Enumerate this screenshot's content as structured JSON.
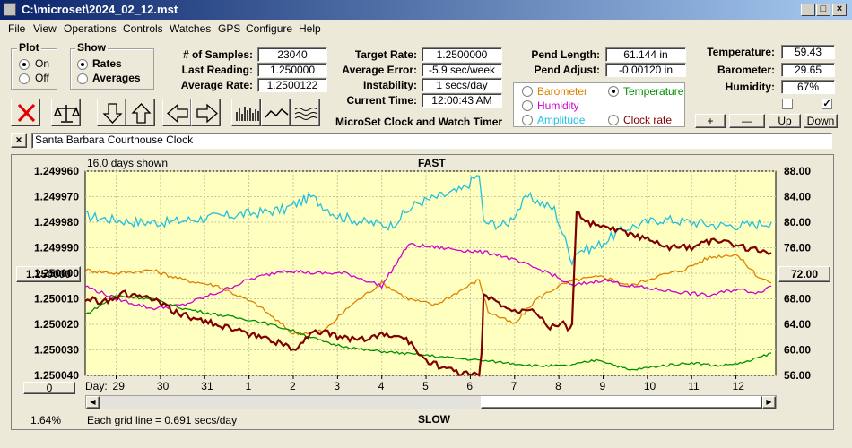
{
  "window": {
    "title": "C:\\microset\\2024_02_12.mst"
  },
  "menu": [
    "File",
    "View",
    "Operations",
    "Controls",
    "Watches",
    "GPS",
    "Configure",
    "Help"
  ],
  "plot": {
    "title": "Plot",
    "on": "On",
    "off": "Off",
    "selected": "On"
  },
  "show": {
    "title": "Show",
    "rates": "Rates",
    "averages": "Averages",
    "selected": "Rates"
  },
  "stats": {
    "samples_label": "# of Samples:",
    "samples": "23040",
    "last_label": "Last Reading:",
    "last": "1.250000",
    "avg_label": "Average Rate:",
    "avg": "1.2500122",
    "target_label": "Target Rate:",
    "target": "1.2500000",
    "err_label": "Average Error:",
    "err": "-5.9 sec/week",
    "inst_label": "Instability:",
    "inst": "1 secs/day",
    "time_label": "Current Time:",
    "time": "12:00:43 AM",
    "pendlen_label": "Pend Length:",
    "pendlen": "61.144 in",
    "pendadj_label": "Pend Adjust:",
    "pendadj": "-0.00120 in",
    "temp_label": "Temperature:",
    "temp": "59.43",
    "baro_label": "Barometer:",
    "baro": "29.65",
    "hum_label": "Humidity:",
    "hum": "67%"
  },
  "app_name": "MicroSet Clock and Watch Timer",
  "sensors": {
    "barometer": "Barometer",
    "temperature": "Temperature",
    "humidity": "Humidity",
    "amplitude": "Amplitude",
    "clockrate": "Clock rate",
    "selected": "Temperature",
    "colors": {
      "barometer": "#e08000",
      "temperature": "#009000",
      "humidity": "#d000d0",
      "amplitude": "#20c0e0",
      "clockrate": "#800000"
    }
  },
  "steppers": {
    "plus": "+",
    "minus": "—",
    "up": "Up",
    "down": "Down"
  },
  "checkboxes": {
    "left": false,
    "right": true
  },
  "clock_name": "Santa Barbara Courthouse Clock",
  "chart_data": {
    "type": "line",
    "top_label": "FAST",
    "bottom_label": "SLOW",
    "days_shown": "16.0 days shown",
    "grid_note": "Each grid line = 0.691 secs/day",
    "zoom": "1.64%",
    "left_button": "1.250000",
    "right_button": "72.00",
    "offset_button": "0",
    "day_label": "Day:",
    "x_ticks": [
      "29",
      "30",
      "31",
      "1",
      "2",
      "3",
      "4",
      "5",
      "6",
      "7",
      "8",
      "9",
      "10",
      "11",
      "12"
    ],
    "y_left_ticks": [
      "1.249960",
      "1.249970",
      "1.249980",
      "1.249990",
      "1.250000",
      "1.250010",
      "1.250020",
      "1.250030",
      "1.250040"
    ],
    "y_right_ticks": [
      "88.00",
      "84.00",
      "80.00",
      "76.00",
      "72.00",
      "68.00",
      "64.00",
      "60.00",
      "56.00"
    ],
    "ylim_left": [
      1.24996,
      1.25004
    ],
    "ylim_right": [
      56,
      88
    ],
    "xlim": [
      28.3,
      12.9
    ],
    "series": [
      {
        "key": "amplitude",
        "x": [
          28.3,
          28.8,
          29.5,
          30.2,
          30.8,
          31.5,
          1.2,
          1.8,
          2.4,
          3.0,
          3.6,
          4.2,
          4.8,
          5.3,
          5.8,
          6.2,
          6.3,
          6.8,
          7.3,
          7.9,
          8.2,
          8.3,
          8.4,
          8.8,
          9.5,
          10.3,
          11.0,
          11.6,
          12.2,
          12.8
        ],
        "y": [
          81.0,
          80.5,
          80.0,
          80.0,
          80.5,
          81.0,
          81.5,
          82.0,
          84.0,
          81.0,
          80.0,
          79.5,
          83.0,
          84.0,
          85.0,
          87.5,
          80.0,
          79.5,
          84.0,
          82.0,
          76.0,
          74.0,
          75.5,
          76.0,
          79.0,
          80.5,
          80.0,
          79.5,
          79.5,
          80.0
        ]
      },
      {
        "key": "barometer",
        "x": [
          28.3,
          29.0,
          29.8,
          30.5,
          31.3,
          1.2,
          2.0,
          2.7,
          3.3,
          4.0,
          4.6,
          5.2,
          5.7,
          6.2,
          6.4,
          7.0,
          7.5,
          8.0,
          8.4,
          9.0,
          9.6,
          10.2,
          10.8,
          11.4,
          12.0,
          12.5,
          12.8
        ],
        "y": [
          72.5,
          72.0,
          72.5,
          71.0,
          70.0,
          67.0,
          62.5,
          63.0,
          67.0,
          70.5,
          68.0,
          67.0,
          69.0,
          71.0,
          66.0,
          64.0,
          68.0,
          70.0,
          71.0,
          71.5,
          70.0,
          71.5,
          72.5,
          74.5,
          75.0,
          71.5,
          70.5
        ]
      },
      {
        "key": "humidity",
        "x": [
          28.3,
          29.0,
          29.8,
          30.5,
          31.3,
          1.0,
          1.8,
          2.5,
          3.2,
          4.0,
          4.6,
          5.3,
          6.0,
          6.6,
          7.2,
          7.8,
          8.3,
          9.0,
          9.6,
          10.2,
          10.8,
          11.4,
          12.0,
          12.5,
          12.8
        ],
        "y": [
          70.0,
          68.0,
          66.5,
          67.0,
          69.0,
          71.0,
          72.5,
          72.0,
          72.0,
          70.0,
          76.5,
          76.0,
          75.5,
          75.0,
          73.5,
          72.0,
          70.0,
          71.0,
          70.0,
          69.5,
          69.0,
          68.5,
          69.5,
          69.0,
          70.0
        ]
      },
      {
        "key": "temperature",
        "x": [
          28.3,
          29.0,
          29.8,
          30.5,
          31.3,
          1.2,
          2.0,
          2.8,
          3.6,
          4.4,
          5.2,
          6.0,
          6.8,
          7.5,
          8.2,
          8.9,
          9.6,
          10.3,
          11.0,
          11.6,
          12.2,
          12.8
        ],
        "y": [
          65.5,
          68.5,
          68.0,
          66.5,
          65.5,
          64.5,
          63.0,
          61.0,
          60.0,
          59.5,
          59.0,
          58.5,
          58.0,
          57.5,
          57.5,
          58.5,
          56.8,
          57.5,
          58.0,
          57.5,
          58.0,
          59.5
        ]
      },
      {
        "key": "clockrate",
        "x": [
          28.3,
          28.7,
          29.2,
          29.8,
          30.3,
          30.8,
          31.3,
          1.0,
          1.5,
          2.0,
          2.5,
          3.0,
          3.5,
          4.0,
          4.5,
          5.0,
          5.4,
          5.8,
          6.2,
          6.25,
          6.3,
          6.7,
          7.0,
          7.4,
          7.8,
          8.1,
          8.2,
          8.3,
          8.4,
          8.6,
          9.0,
          9.5,
          10.0,
          10.5,
          11.0,
          11.5,
          12.0,
          12.5,
          12.8
        ],
        "y": [
          1.25001,
          1.250011,
          1.250008,
          1.25001,
          1.250015,
          1.250018,
          1.25002,
          1.250024,
          1.250026,
          1.25003,
          1.250022,
          1.250025,
          1.250026,
          1.250024,
          1.250025,
          1.250034,
          1.250037,
          1.250039,
          1.25004,
          1.250032,
          1.250009,
          1.250012,
          1.250015,
          1.250013,
          1.250021,
          1.25002,
          1.250022,
          1.250019,
          1.249976,
          1.24998,
          1.249982,
          1.249984,
          1.249987,
          1.24999,
          1.24999,
          1.249987,
          1.249989,
          1.249991,
          1.249992
        ]
      }
    ]
  }
}
